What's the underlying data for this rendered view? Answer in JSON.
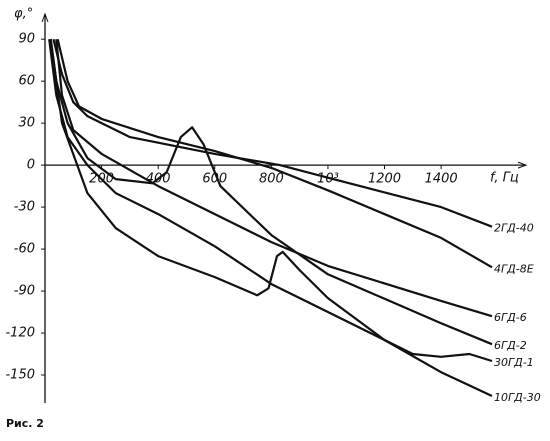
{
  "chart_data": {
    "type": "line",
    "y_label": "φ,°",
    "x_label": "f, Гц",
    "caption": "Рис. 2",
    "xlim": [
      0,
      1700
    ],
    "ylim": [
      -170,
      108
    ],
    "xticks": [
      200,
      400,
      600,
      800,
      {
        "value": 1000,
        "label": "10³"
      },
      1200,
      1400
    ],
    "yticks": [
      90,
      60,
      30,
      0,
      -30,
      -60,
      -90,
      -120,
      -150
    ],
    "series": [
      {
        "name": "2ГД-40",
        "color": "#111111",
        "x": [
          30,
          60,
          100,
          150,
          300,
          600,
          830,
          1000,
          1400,
          1580
        ],
        "values": [
          90,
          65,
          45,
          35,
          20,
          8,
          0,
          -9,
          -30,
          -44
        ]
      },
      {
        "name": "4ГД-8Е",
        "color": "#111111",
        "x": [
          45,
          80,
          120,
          200,
          400,
          600,
          800,
          1000,
          1400,
          1580
        ],
        "values": [
          90,
          60,
          42,
          33,
          20,
          10,
          -2,
          -18,
          -52,
          -73
        ]
      },
      {
        "name": "6ГД-6",
        "color": "#111111",
        "x": [
          40,
          60,
          100,
          200,
          400,
          600,
          800,
          1000,
          1400,
          1580
        ],
        "values": [
          90,
          50,
          25,
          8,
          -15,
          -35,
          -55,
          -72,
          -97,
          -108
        ]
      },
      {
        "name": "6ГД-2",
        "color": "#111111",
        "x": [
          20,
          40,
          80,
          150,
          250,
          380,
          430,
          480,
          520,
          560,
          620,
          800,
          1000,
          1400,
          1580
        ],
        "values": [
          90,
          60,
          30,
          5,
          -10,
          -13,
          -5,
          20,
          27,
          15,
          -15,
          -50,
          -78,
          -113,
          -128
        ]
      },
      {
        "name": "30ГД-1",
        "color": "#111111",
        "x": [
          15,
          40,
          80,
          150,
          250,
          400,
          600,
          800,
          1000,
          1200,
          1300,
          1400,
          1500,
          1580
        ],
        "values": [
          90,
          50,
          20,
          0,
          -20,
          -35,
          -58,
          -85,
          -105,
          -125,
          -135,
          -137,
          -135,
          -140
        ]
      },
      {
        "name": "10ГД-30",
        "color": "#111111",
        "x": [
          20,
          60,
          150,
          250,
          400,
          600,
          750,
          790,
          820,
          840,
          900,
          1000,
          1200,
          1400,
          1580
        ],
        "values": [
          90,
          30,
          -20,
          -45,
          -65,
          -80,
          -93,
          -88,
          -65,
          -62,
          -75,
          -95,
          -125,
          -148,
          -165
        ]
      }
    ]
  }
}
